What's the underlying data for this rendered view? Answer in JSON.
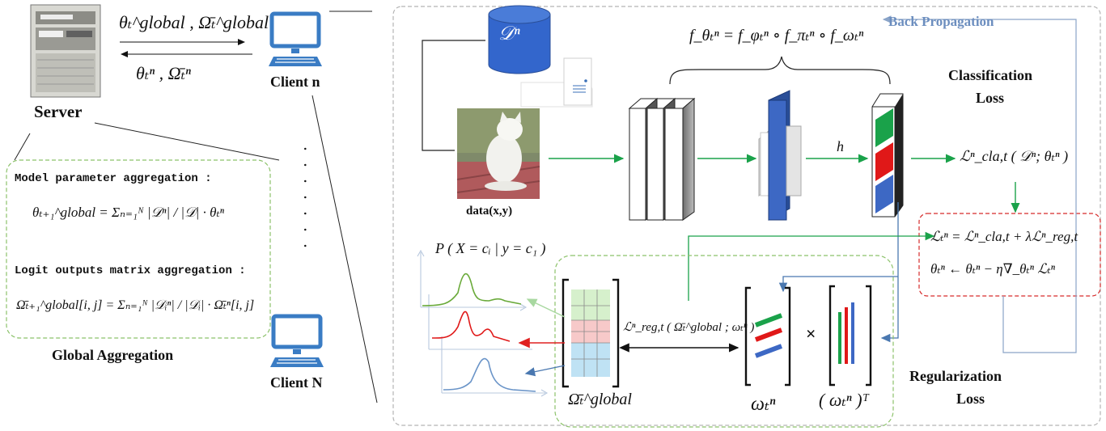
{
  "nodes": {
    "server": "Server",
    "client_n": "Client n",
    "client_N": "Client N",
    "data": "data(x,y)",
    "dataset": "𝒟ⁿ",
    "ellipsis": ". . . . . . ."
  },
  "arrows": {
    "down_top": "θₜ^global ,  Ω̄ₜ^global",
    "up_bottom": "θₜⁿ ,  Ω̄ₜⁿ"
  },
  "aggregation": {
    "model_title": "Model parameter aggregation :",
    "model_eq": "θₜ₊₁^global = Σₙ₌₁ᴺ |𝒟ⁿ| / |𝒟| · θₜⁿ",
    "logit_title": "Logit outputs matrix aggregation :",
    "logit_eq": "Ω̄ₜ₊₁^global[i, j] = Σₙ₌₁ᴺ |𝒟ᵢⁿ| / |𝒟ᵢ| · Ω̄ₜⁿ[i, j]",
    "caption": "Global Aggregation"
  },
  "network": {
    "composition": "f_θₜⁿ = f_φₜⁿ ∘ f_πₜⁿ ∘ f_ωₜⁿ",
    "back_prop": "Back Propagation",
    "h_label": "h",
    "classification_loss": [
      "Classification",
      "Loss"
    ],
    "cla_loss_eq": "ℒⁿ_cla,t ( 𝒟ⁿ; θₜⁿ )",
    "total_loss_eq": "ℒₜⁿ = ℒⁿ_cla,t + λℒⁿ_reg,t",
    "update_eq": "θₜⁿ ← θₜⁿ − η∇_θₜⁿ ℒₜⁿ"
  },
  "regularization": {
    "prob_label": "P ( X = cᵢ | y = c₁ )",
    "reg_eq": "ℒⁿ_reg,t ( Ω̄ₜ^global ; ωₜⁿ )",
    "matrix_label": "Ω̄ₜ^global",
    "omega_label": "ωₜⁿ",
    "omega_T_label": "( ωₜⁿ )ᵀ",
    "times": "×",
    "regularization_loss": [
      "Regularization",
      "Loss"
    ]
  },
  "colors": {
    "accent_blue": "#6c8ebf",
    "green_arrow": "#1aa24a",
    "red_arrow": "#e02020",
    "dashed_green": "#8cc26a",
    "dashed_red": "#d62b2b",
    "cylinder": "#3366cc"
  }
}
